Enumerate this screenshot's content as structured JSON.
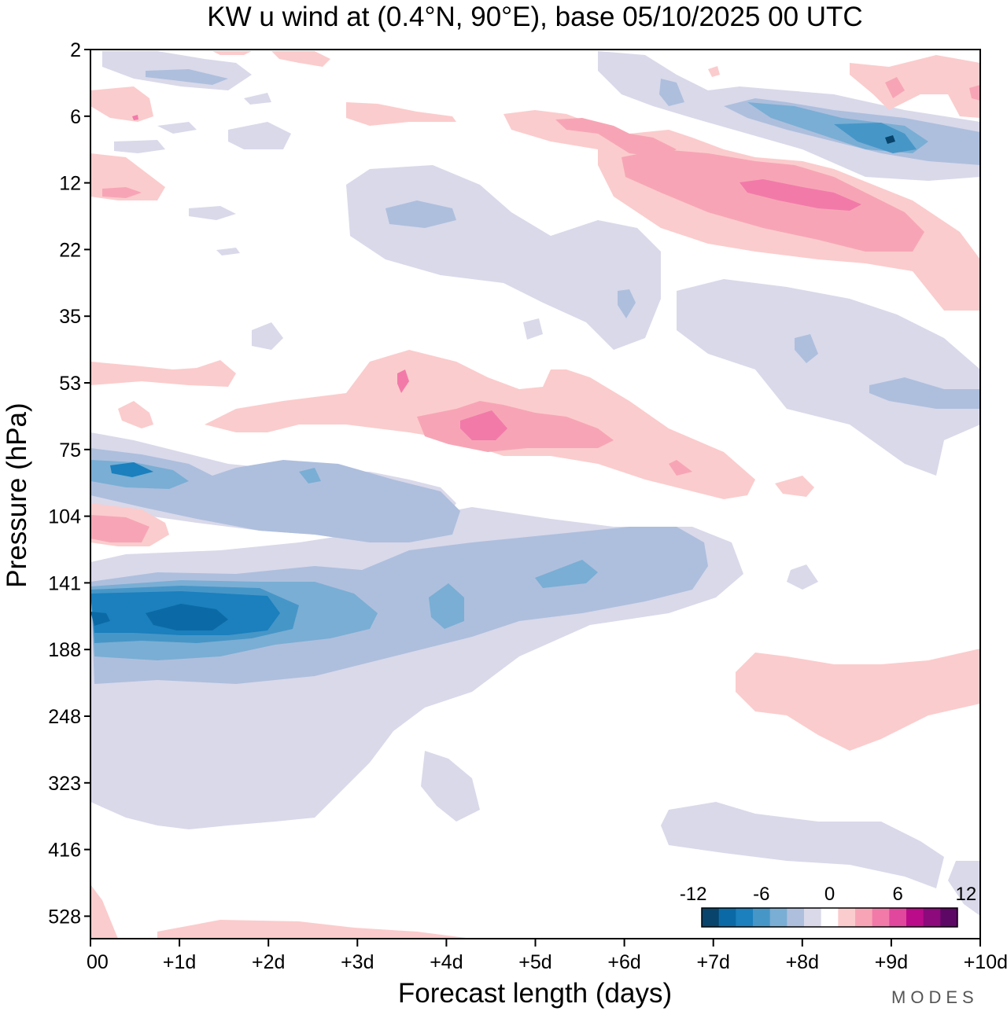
{
  "chart_data": {
    "type": "heatmap",
    "subtype": "filled-contour",
    "title": "KW u wind at (0.4°N, 90°E),  base 05/10/2025  00 UTC",
    "xlabel": "Forecast length (days)",
    "ylabel": "Pressure (hPa)",
    "x_ticks": [
      "00",
      "+1d",
      "+2d",
      "+3d",
      "+4d",
      "+5d",
      "+6d",
      "+7d",
      "+8d",
      "+9d",
      "+10d"
    ],
    "xlim_days": [
      0,
      10
    ],
    "y_ticks": [
      "2",
      "6",
      "12",
      "22",
      "35",
      "53",
      "75",
      "104",
      "141",
      "188",
      "248",
      "323",
      "416",
      "528"
    ],
    "ylim_hpa": [
      2,
      650
    ],
    "y_scale": "log-pressure",
    "colorbar": {
      "tick_labels": [
        "-12",
        "-6",
        "0",
        "6",
        "12"
      ],
      "tick_values": [
        -12,
        -6,
        0,
        6,
        12
      ],
      "interval": 1.5,
      "colors": [
        "#08446b",
        "#0b6aa5",
        "#1b80bd",
        "#4796c8",
        "#7aaed4",
        "#aebfdd",
        "#d9d9ea",
        "#ffffff",
        "#fbcccd",
        "#f7a5b6",
        "#f27aa9",
        "#e0479d",
        "#bb0b8a",
        "#8d0a7c",
        "#5e0866"
      ]
    },
    "regions": [
      {
        "name": "Lower stratosphere westward jet core",
        "sign": "negative",
        "days": [
          0,
          1.6
        ],
        "pressure_hpa": [
          140,
          190
        ],
        "peak_ms": -12
      },
      {
        "name": "Westward wind band extending to day 7.2",
        "sign": "negative",
        "days": [
          0,
          7.2
        ],
        "pressure_hpa": [
          110,
          330
        ],
        "peak_ms": -6
      },
      {
        "name": "Westward wind near 85 hPa",
        "sign": "negative",
        "days": [
          0,
          4
        ],
        "pressure_hpa": [
          75,
          100
        ],
        "peak_ms": -7.5
      },
      {
        "name": "Eastward wind near 65 hPa",
        "sign": "positive",
        "days": [
          2,
          7.3
        ],
        "pressure_hpa": [
          50,
          95
        ],
        "peak_ms": 6
      },
      {
        "name": "Eastward jet 8-20 hPa",
        "sign": "positive",
        "days": [
          4.7,
          10
        ],
        "pressure_hpa": [
          6,
          30
        ],
        "peak_ms": 6
      },
      {
        "name": "Westward wind 5-11 hPa",
        "sign": "negative",
        "days": [
          6.5,
          10
        ],
        "pressure_hpa": [
          4,
          12
        ],
        "peak_ms": -9
      },
      {
        "name": "Weak westward wind 12-40 hPa",
        "sign": "negative",
        "days": [
          3,
          6.5
        ],
        "pressure_hpa": [
          12,
          40
        ],
        "peak_ms": -3
      },
      {
        "name": "Weak westward wind 35-90 hPa",
        "sign": "negative",
        "days": [
          6.5,
          10
        ],
        "pressure_hpa": [
          30,
          90
        ],
        "peak_ms": -4.5
      },
      {
        "name": "Weak eastward wind 200-270 hPa",
        "sign": "positive",
        "days": [
          7.3,
          10
        ],
        "pressure_hpa": [
          185,
          270
        ],
        "peak_ms": 1.5
      },
      {
        "name": "Weak westward wind 350-480 hPa",
        "sign": "negative",
        "days": [
          6.4,
          9.3
        ],
        "pressure_hpa": [
          350,
          480
        ],
        "peak_ms": -1.5
      },
      {
        "name": "Eastward wind near 110 hPa",
        "sign": "positive",
        "days": [
          0,
          0.9
        ],
        "pressure_hpa": [
          100,
          120
        ],
        "peak_ms": 4.5
      }
    ]
  },
  "watermark": "MODES"
}
